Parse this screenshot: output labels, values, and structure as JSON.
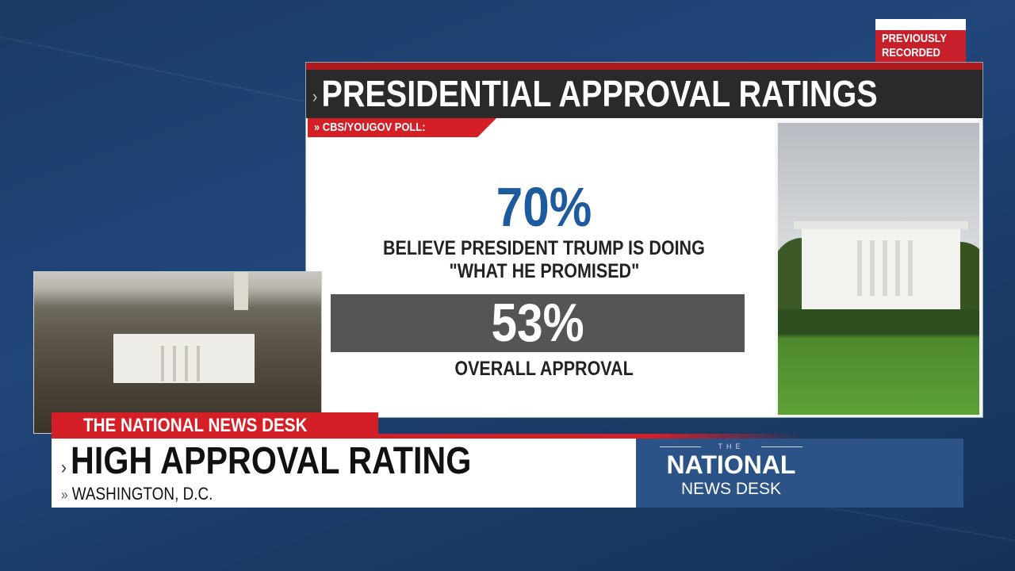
{
  "badge": {
    "text": "PREVIOUSLY RECORDED"
  },
  "graphic": {
    "title": "PRESIDENTIAL APPROVAL RATINGS",
    "source_tag": "CBS/YOUGOV POLL:",
    "stat1": {
      "value": "70%",
      "label_line1": "BELIEVE PRESIDENT TRUMP IS DOING",
      "label_line2": "\"WHAT HE PROMISED\""
    },
    "stat2": {
      "value": "53%",
      "label": "OVERALL APPROVAL"
    }
  },
  "lower_third": {
    "tab": "THE NATIONAL NEWS DESK",
    "headline": "HIGH APPROVAL RATING",
    "location": "WASHINGTON, D.C."
  },
  "logo": {
    "the": "THE",
    "line1": "NATIONAL",
    "line2": "NEWS DESK"
  },
  "colors": {
    "brand_red": "#d41f26",
    "stat_blue": "#1d5a9e",
    "logo_blue": "#2b5387",
    "header_dark": "#2a2a2a"
  }
}
